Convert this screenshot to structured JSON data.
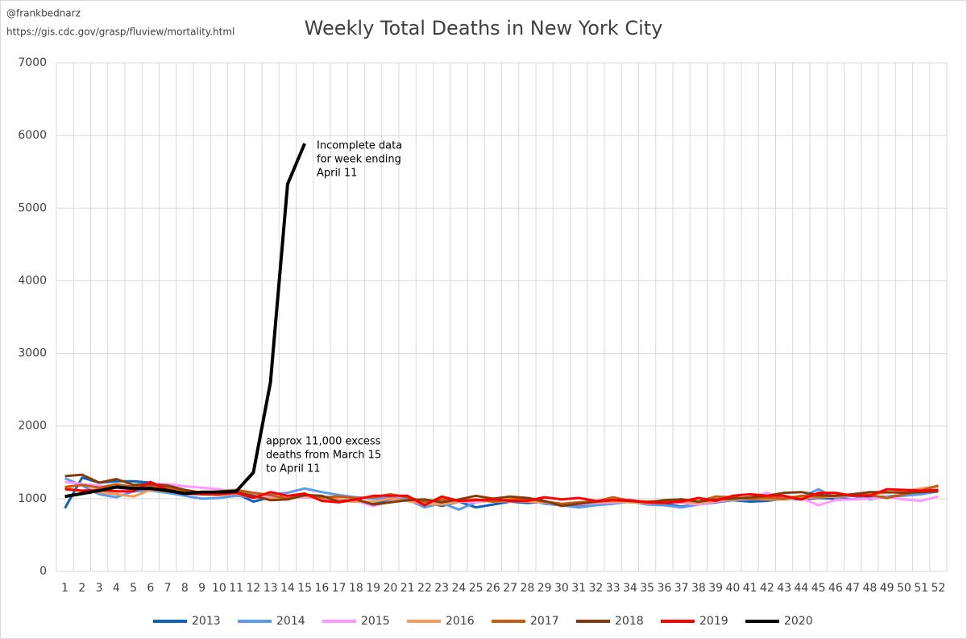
{
  "chart_data": {
    "type": "line",
    "title": "Weekly Total Deaths in New York City",
    "credits": [
      "@frankbednarz",
      "https://gis.cdc.gov/grasp/fluview/mortality.html"
    ],
    "annotations": [
      [
        "Incomplete data",
        "for week ending",
        "April 11"
      ],
      [
        "approx 11,000 excess",
        "deaths from March 15",
        "to April 11"
      ]
    ],
    "categories": [
      "1",
      "2",
      "3",
      "4",
      "5",
      "6",
      "7",
      "8",
      "9",
      "10",
      "11",
      "12",
      "13",
      "14",
      "15",
      "16",
      "17",
      "18",
      "19",
      "20",
      "21",
      "22",
      "23",
      "24",
      "25",
      "26",
      "27",
      "28",
      "29",
      "30",
      "31",
      "32",
      "33",
      "34",
      "35",
      "36",
      "37",
      "38",
      "39",
      "40",
      "41",
      "42",
      "43",
      "44",
      "45",
      "46",
      "47",
      "48",
      "49",
      "50",
      "51",
      "52"
    ],
    "ylim": [
      0,
      7000
    ],
    "yticks": [
      0,
      1000,
      2000,
      3000,
      4000,
      5000,
      6000,
      7000
    ],
    "grid": true,
    "legend": "bottom",
    "series": [
      {
        "name": "2013",
        "color": "#0f62b8",
        "values": [
          870,
          1290,
          1220,
          1240,
          1240,
          1220,
          1150,
          1100,
          1060,
          1050,
          1070,
          960,
          1020,
          1030,
          1050,
          1000,
          980,
          960,
          950,
          970,
          990,
          960,
          900,
          960,
          880,
          920,
          960,
          940,
          960,
          930,
          910,
          930,
          940,
          960,
          950,
          930,
          890,
          920,
          950,
          980,
          960,
          970,
          1000,
          990,
          1010,
          1000,
          990,
          1020,
          1030,
          1050,
          1070,
          1120
        ]
      },
      {
        "name": "2014",
        "color": "#5b9bec",
        "values": [
          1280,
          1180,
          1060,
          1020,
          1100,
          1110,
          1080,
          1040,
          1000,
          1010,
          1040,
          1020,
          1060,
          1080,
          1140,
          1090,
          1050,
          1020,
          1000,
          1010,
          990,
          880,
          940,
          850,
          950,
          980,
          960,
          990,
          930,
          910,
          880,
          910,
          930,
          960,
          920,
          910,
          880,
          920,
          960,
          980,
          990,
          1000,
          1010,
          1020,
          1130,
          1010,
          1040,
          990,
          1030,
          1040,
          1060,
          1100
        ]
      },
      {
        "name": "2015",
        "color": "#ff99ff",
        "values": [
          1230,
          1200,
          1180,
          1150,
          1110,
          1200,
          1200,
          1170,
          1150,
          1130,
          1080,
          1050,
          1020,
          1020,
          1020,
          1010,
          990,
          970,
          900,
          960,
          980,
          920,
          970,
          960,
          950,
          980,
          970,
          990,
          960,
          930,
          920,
          940,
          950,
          960,
          940,
          950,
          940,
          920,
          960,
          990,
          1010,
          1080,
          1000,
          1010,
          910,
          980,
          990,
          1000,
          1020,
          990,
          970,
          1030
        ]
      },
      {
        "name": "2016",
        "color": "#f79a5a",
        "values": [
          1150,
          1100,
          1090,
          1060,
          1030,
          1120,
          1100,
          1080,
          1060,
          1050,
          1070,
          1020,
          1000,
          1010,
          1040,
          1000,
          990,
          960,
          960,
          1000,
          970,
          930,
          920,
          960,
          980,
          960,
          970,
          960,
          950,
          920,
          940,
          950,
          960,
          950,
          940,
          950,
          960,
          940,
          970,
          990,
          1000,
          990,
          990,
          1010,
          1020,
          1030,
          1050,
          1060,
          1080,
          1100,
          1140,
          1170
        ]
      },
      {
        "name": "2017",
        "color": "#c55a11",
        "values": [
          1160,
          1190,
          1150,
          1200,
          1160,
          1170,
          1150,
          1110,
          1080,
          1100,
          1120,
          1080,
          1050,
          1000,
          1060,
          1020,
          1030,
          1010,
          1020,
          1060,
          1020,
          960,
          990,
          970,
          990,
          960,
          990,
          1000,
          960,
          930,
          950,
          960,
          1020,
          970,
          960,
          970,
          990,
          960,
          1030,
          1020,
          1000,
          1010,
          1000,
          1040,
          1030,
          1040,
          1050,
          1050,
          1010,
          1060,
          1110,
          1180
        ]
      },
      {
        "name": "2018",
        "color": "#843c0c",
        "values": [
          1310,
          1330,
          1220,
          1270,
          1190,
          1200,
          1180,
          1120,
          1080,
          1080,
          1090,
          1040,
          980,
          990,
          1050,
          1040,
          960,
          990,
          920,
          950,
          980,
          990,
          950,
          990,
          1040,
          1000,
          1030,
          1010,
          970,
          900,
          930,
          960,
          980,
          970,
          950,
          980,
          990,
          960,
          990,
          1000,
          1020,
          1040,
          1080,
          1090,
          1050,
          1040,
          1060,
          1090,
          1090,
          1080,
          1090,
          1100
        ]
      },
      {
        "name": "2019",
        "color": "#ff0000",
        "values": [
          1130,
          1110,
          1120,
          1100,
          1100,
          1230,
          1120,
          1070,
          1060,
          1060,
          1080,
          1010,
          1090,
          1040,
          1070,
          970,
          950,
          990,
          1040,
          1040,
          1040,
          910,
          1030,
          970,
          980,
          990,
          970,
          970,
          1020,
          990,
          1010,
          970,
          980,
          980,
          950,
          940,
          960,
          1010,
          970,
          1040,
          1060,
          1040,
          1040,
          990,
          1080,
          1080,
          1040,
          1040,
          1130,
          1120,
          1110,
          1120
        ]
      },
      {
        "name": "2020",
        "color": "#000000",
        "values": [
          1030,
          1070,
          1110,
          1160,
          1140,
          1140,
          1110,
          1070,
          1090,
          1090,
          1100,
          1360,
          2600,
          5330,
          5890,
          null,
          null,
          null,
          null,
          null,
          null,
          null,
          null,
          null,
          null,
          null,
          null,
          null,
          null,
          null,
          null,
          null,
          null,
          null,
          null,
          null,
          null,
          null,
          null,
          null,
          null,
          null,
          null,
          null,
          null,
          null,
          null,
          null,
          null,
          null,
          null,
          null
        ]
      }
    ]
  }
}
